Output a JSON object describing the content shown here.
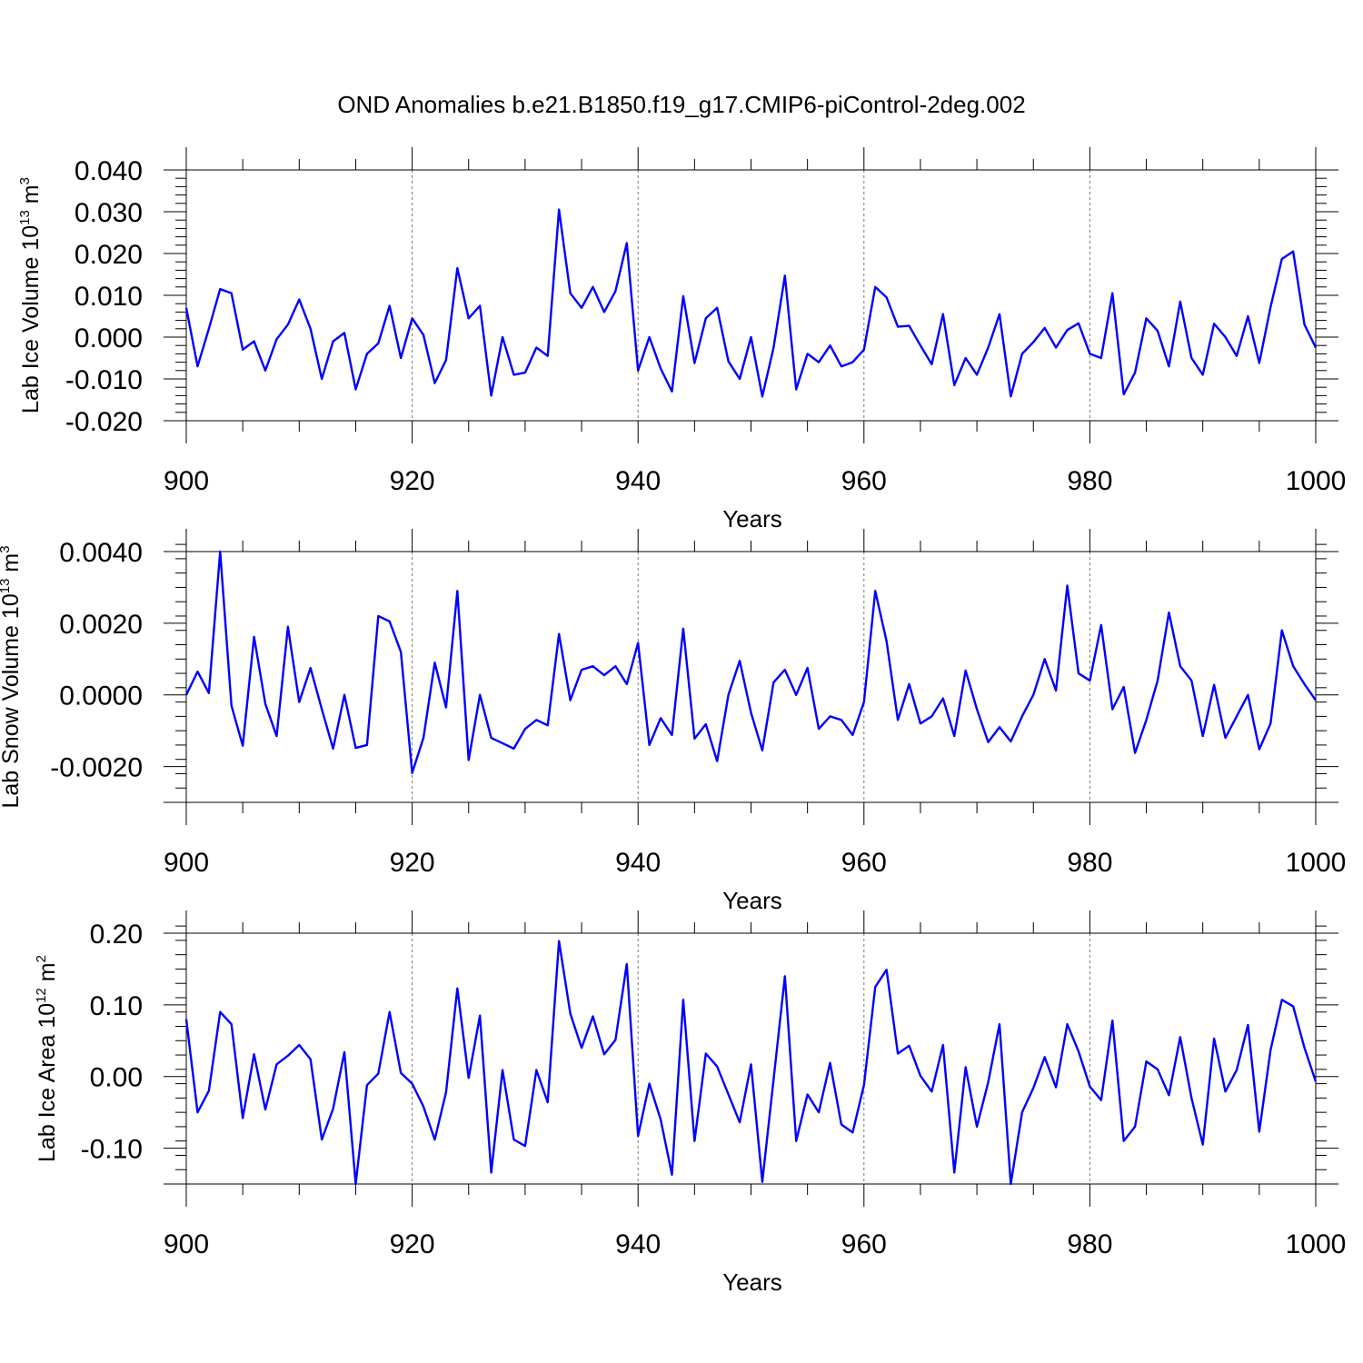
{
  "title": "OND Anomalies b.e21.B1850.f19_g17.CMIP6-piControl-2deg.002",
  "chart_data": [
    {
      "type": "line",
      "title": "OND Anomalies b.e21.B1850.f19_g17.CMIP6-piControl-2deg.002",
      "xlabel": "Years",
      "ylabel": "Lab Ice Volume 10^13 m^3",
      "ylabel_parts": {
        "pre": "Lab Ice Volume 10",
        "exp1": "13",
        "mid": " m",
        "exp2": "3"
      },
      "xlim": [
        900,
        1000
      ],
      "ylim": [
        -0.02,
        0.04
      ],
      "x_ticks": [
        900,
        920,
        940,
        960,
        980,
        1000
      ],
      "x_tick_labels": [
        "900",
        "920",
        "940",
        "960",
        "980",
        "1000"
      ],
      "y_ticks": [
        -0.02,
        -0.01,
        0.0,
        0.01,
        0.02,
        0.03,
        0.04
      ],
      "y_tick_labels": [
        "-0.020",
        "-0.010",
        "0.000",
        "0.010",
        "0.020",
        "0.030",
        "0.040"
      ],
      "y_minor_step": 0.002,
      "grid": "vertical dashed at 920, 940, 960, 980",
      "line_color": "#0000ff",
      "x_start": 900,
      "x_step": 1,
      "values": [
        0.007,
        -0.007,
        0.002,
        0.0115,
        0.0105,
        -0.003,
        -0.001,
        -0.008,
        -0.0005,
        0.003,
        0.009,
        0.002,
        -0.01,
        -0.001,
        0.001,
        -0.0125,
        -0.004,
        -0.0015,
        0.0075,
        -0.005,
        0.0045,
        0.0005,
        -0.011,
        -0.0055,
        0.0165,
        0.0045,
        0.0075,
        -0.014,
        0.0,
        -0.009,
        -0.0085,
        -0.0025,
        -0.0045,
        0.0305,
        0.0105,
        0.007,
        0.012,
        0.006,
        0.011,
        0.0225,
        -0.008,
        0.0,
        -0.0075,
        -0.013,
        0.0098,
        -0.0062,
        0.0045,
        0.007,
        -0.0058,
        -0.01,
        0.0,
        -0.0142,
        -0.0025,
        0.0147,
        -0.0125,
        -0.004,
        -0.006,
        -0.002,
        -0.007,
        -0.006,
        -0.003,
        0.012,
        0.0095,
        0.0025,
        0.0027,
        -0.002,
        -0.0065,
        0.0055,
        -0.0115,
        -0.005,
        -0.009,
        -0.0025,
        0.0055,
        -0.0142,
        -0.004,
        -0.0012,
        0.0022,
        -0.0025,
        0.0017,
        0.0033,
        -0.004,
        -0.005,
        0.0105,
        -0.0137,
        -0.0085,
        0.0045,
        0.0015,
        -0.007,
        0.0085,
        -0.005,
        -0.009,
        0.0032,
        0.0,
        -0.0045,
        0.005,
        -0.0062,
        0.0072,
        0.0187,
        0.0205,
        0.003,
        -0.0025
      ]
    },
    {
      "type": "line",
      "xlabel": "Years",
      "ylabel": "Lab Snow Volume 10^13 m^3",
      "ylabel_parts": {
        "pre": "Lab Snow Volume 10",
        "exp1": "13",
        "mid": " m",
        "exp2": "3"
      },
      "xlim": [
        900,
        1000
      ],
      "ylim": [
        -0.003,
        0.004
      ],
      "x_ticks": [
        900,
        920,
        940,
        960,
        980,
        1000
      ],
      "x_tick_labels": [
        "900",
        "920",
        "940",
        "960",
        "980",
        "1000"
      ],
      "y_ticks": [
        -0.002,
        0.0,
        0.002,
        0.004
      ],
      "y_tick_labels": [
        "-0.0020",
        "0.0000",
        "0.0020",
        "0.0040"
      ],
      "y_minor_step": 0.0004,
      "grid": "vertical dashed at 920, 940, 960, 980",
      "line_color": "#0000ff",
      "x_start": 900,
      "x_step": 1,
      "values": [
        0.0,
        0.00065,
        5e-05,
        0.004,
        -0.0003,
        -0.00142,
        0.00162,
        -0.00025,
        -0.00115,
        0.0019,
        -0.0002,
        0.00075,
        -0.0004,
        -0.0015,
        0.0,
        -0.00148,
        -0.0014,
        0.0022,
        0.00205,
        0.0012,
        -0.00218,
        -0.0012,
        0.0009,
        -0.00035,
        0.0029,
        -0.00182,
        0.0,
        -0.0012,
        -0.00135,
        -0.0015,
        -0.00095,
        -0.0007,
        -0.00085,
        0.0017,
        -0.00015,
        0.0007,
        0.0008,
        0.00055,
        0.0008,
        0.0003,
        0.00145,
        -0.0014,
        -0.00065,
        -0.00112,
        0.00185,
        -0.00122,
        -0.00082,
        -0.00185,
        0.0,
        0.00095,
        -0.0005,
        -0.00155,
        0.00035,
        0.0007,
        0.0,
        0.00075,
        -0.00095,
        -0.0006,
        -0.0007,
        -0.00112,
        -0.0002,
        0.0029,
        0.0015,
        -0.0007,
        0.0003,
        -0.0008,
        -0.0006,
        -0.0001,
        -0.00115,
        0.00068,
        -0.0004,
        -0.00132,
        -0.0009,
        -0.0013,
        -0.0006,
        0.0,
        0.001,
        0.00012,
        0.00305,
        0.0006,
        0.0004,
        0.00195,
        -0.0004,
        0.00022,
        -0.00162,
        -0.0007,
        0.0004,
        0.0023,
        0.0008,
        0.0004,
        -0.00115,
        0.00028,
        -0.0012,
        -0.0006,
        0.0,
        -0.00152,
        -0.0008,
        0.0018,
        0.0008,
        0.0003,
        -0.00015
      ]
    },
    {
      "type": "line",
      "xlabel": "Years",
      "ylabel": "Lab Ice Area 10^12 m^2",
      "ylabel_parts": {
        "pre": "Lab Ice Area 10",
        "exp1": "12",
        "mid": " m",
        "exp2": "2"
      },
      "xlim": [
        900,
        1000
      ],
      "ylim": [
        -0.15,
        0.2
      ],
      "x_ticks": [
        900,
        920,
        940,
        960,
        980,
        1000
      ],
      "x_tick_labels": [
        "900",
        "920",
        "940",
        "960",
        "980",
        "1000"
      ],
      "y_ticks": [
        -0.1,
        0.0,
        0.1,
        0.2
      ],
      "y_tick_labels": [
        "-0.10",
        "0.00",
        "0.10",
        "0.20"
      ],
      "y_minor_step": 0.02,
      "grid": "vertical dashed at 920, 940, 960, 980",
      "line_color": "#0000ff",
      "x_start": 900,
      "x_step": 1,
      "values": [
        0.08,
        -0.05,
        -0.02,
        0.09,
        0.073,
        -0.058,
        0.031,
        -0.046,
        0.017,
        0.029,
        0.044,
        0.024,
        -0.088,
        -0.045,
        0.034,
        -0.15,
        -0.012,
        0.004,
        0.09,
        0.005,
        -0.01,
        -0.042,
        -0.088,
        -0.022,
        0.123,
        -0.002,
        0.085,
        -0.134,
        0.009,
        -0.088,
        -0.097,
        0.009,
        -0.036,
        0.189,
        0.088,
        0.04,
        0.084,
        0.031,
        0.051,
        0.157,
        -0.083,
        -0.01,
        -0.06,
        -0.137,
        0.107,
        -0.09,
        0.032,
        0.014,
        -0.025,
        -0.064,
        0.017,
        -0.147,
        -0.004,
        0.14,
        -0.09,
        -0.025,
        -0.05,
        0.019,
        -0.067,
        -0.078,
        -0.012,
        0.125,
        0.149,
        0.032,
        0.043,
        0.001,
        -0.021,
        0.044,
        -0.134,
        0.013,
        -0.07,
        -0.008,
        0.073,
        -0.151,
        -0.05,
        -0.016,
        0.027,
        -0.015,
        0.073,
        0.035,
        -0.014,
        -0.033,
        0.078,
        -0.09,
        -0.07,
        0.021,
        0.01,
        -0.026,
        0.055,
        -0.03,
        -0.095,
        0.053,
        -0.021,
        0.009,
        0.072,
        -0.077,
        0.037,
        0.107,
        0.098,
        0.04,
        -0.007
      ]
    }
  ]
}
